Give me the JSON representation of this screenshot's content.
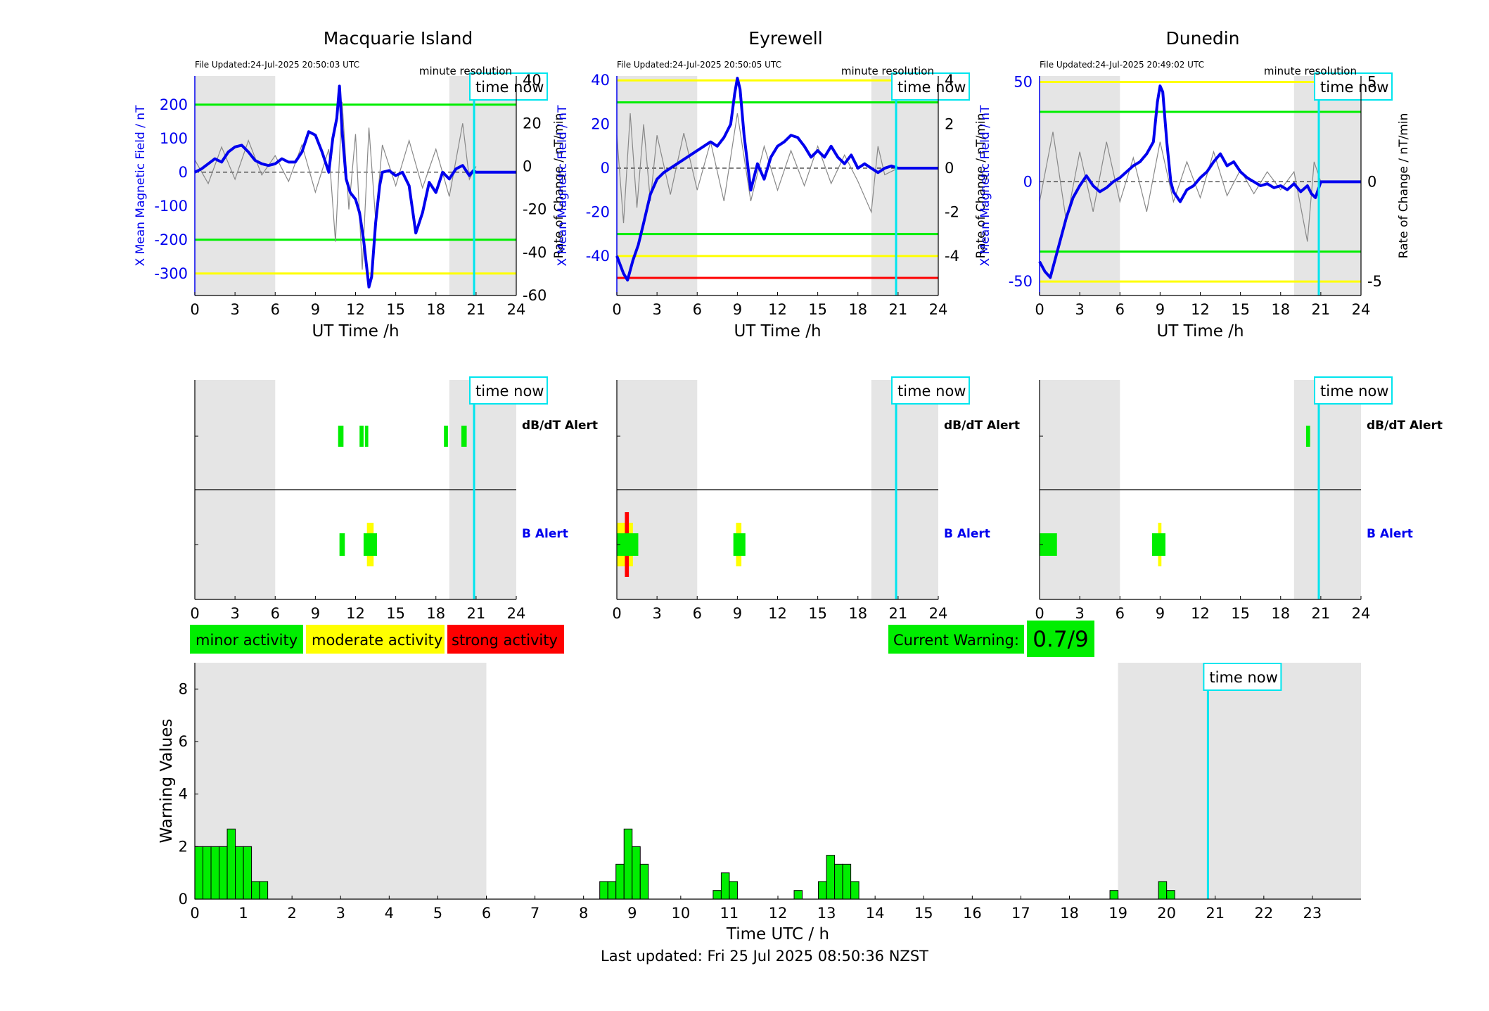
{
  "colors": {
    "shade": "#e5e5e5",
    "green": "#00ee00",
    "yellow": "#ffff00",
    "red": "#ff0000",
    "blue": "#0000ee",
    "cyan": "#00e5ee",
    "grey": "#888888"
  },
  "chart_data": [
    {
      "type": "line",
      "title": "Macquarie Island",
      "file_updated": "File Updated:24-Jul-2025 20:50:03 UTC",
      "resolution_label": "minute resolution",
      "time_now_label": "time now",
      "xlabel": "UT Time /h",
      "ylabel_left": "X Mean Magnetic Field / nT",
      "ylabel_right": "Rate of Change / nT/min",
      "xlim": [
        0,
        24
      ],
      "ylim": [
        -365,
        285
      ],
      "ylim_right": [
        -60,
        42
      ],
      "xticks": [
        0,
        3,
        6,
        9,
        12,
        15,
        18,
        21,
        24
      ],
      "yticks_left": [
        -300,
        -200,
        -100,
        0,
        100,
        200
      ],
      "yticks_right": [
        -60,
        -40,
        -20,
        0,
        20,
        40
      ],
      "shade_ranges": [
        [
          0,
          6
        ],
        [
          19,
          24
        ]
      ],
      "time_now": 20.85,
      "threshold_lines": [
        {
          "value": 200,
          "color": "green"
        },
        {
          "value": -200,
          "color": "green"
        },
        {
          "value": -300,
          "color": "yellow"
        }
      ],
      "series": [
        {
          "kind": "field",
          "x": [
            0,
            0.5,
            1,
            1.5,
            2,
            2.5,
            3,
            3.5,
            4,
            4.5,
            5,
            5.5,
            6,
            6.5,
            7,
            7.5,
            8,
            8.5,
            9,
            9.5,
            10,
            10.3,
            10.6,
            10.8,
            11,
            11.3,
            11.6,
            12,
            12.3,
            12.6,
            13,
            13.2,
            13.5,
            13.8,
            14,
            14.5,
            15,
            15.5,
            16,
            16.5,
            17,
            17.5,
            18,
            18.5,
            19,
            19.5,
            20,
            20.5,
            20.8,
            21,
            22,
            24
          ],
          "values": [
            0,
            10,
            25,
            40,
            30,
            60,
            75,
            80,
            60,
            35,
            25,
            20,
            25,
            40,
            30,
            30,
            60,
            120,
            110,
            60,
            0,
            100,
            160,
            255,
            120,
            -20,
            -60,
            -80,
            -120,
            -200,
            -340,
            -310,
            -150,
            -40,
            0,
            5,
            -10,
            0,
            -40,
            -180,
            -120,
            -30,
            -60,
            0,
            -20,
            10,
            20,
            -10,
            5,
            0,
            0,
            0
          ]
        },
        {
          "kind": "rate",
          "x": [
            0,
            1,
            2,
            3,
            4,
            5,
            6,
            7,
            8,
            9,
            10,
            10.5,
            11,
            11.5,
            12,
            12.5,
            13,
            13.5,
            14,
            15,
            16,
            17,
            18,
            19,
            20,
            20.5,
            21
          ],
          "values": [
            3,
            -8,
            9,
            -6,
            12,
            -4,
            5,
            -7,
            10,
            -12,
            8,
            -35,
            30,
            -20,
            15,
            -48,
            18,
            -25,
            10,
            -9,
            12,
            -10,
            8,
            -14,
            20,
            -6,
            0
          ]
        }
      ]
    },
    {
      "type": "line",
      "title": "Eyrewell",
      "file_updated": "File Updated:24-Jul-2025 20:50:05 UTC",
      "resolution_label": "minute resolution",
      "time_now_label": "time now",
      "xlabel": "UT Time /h",
      "ylabel_left": "X Mean Magnetic Field / nT",
      "ylabel_right": "Rate of Change / nT/min",
      "xlim": [
        0,
        24
      ],
      "ylim": [
        -58,
        42
      ],
      "ylim_right": [
        -5.8,
        4.2
      ],
      "xticks": [
        0,
        3,
        6,
        9,
        12,
        15,
        18,
        21,
        24
      ],
      "yticks_left": [
        -40,
        -20,
        0,
        20,
        40
      ],
      "yticks_right": [
        -4,
        -2,
        0,
        2,
        4
      ],
      "shade_ranges": [
        [
          0,
          6
        ],
        [
          19,
          24
        ]
      ],
      "time_now": 20.85,
      "threshold_lines": [
        {
          "value": 40,
          "color": "yellow"
        },
        {
          "value": 30,
          "color": "green"
        },
        {
          "value": -30,
          "color": "green"
        },
        {
          "value": -40,
          "color": "yellow"
        },
        {
          "value": -50,
          "color": "red"
        }
      ],
      "series": [
        {
          "kind": "field",
          "x": [
            0,
            0.5,
            0.8,
            1.2,
            1.6,
            2,
            2.5,
            3,
            3.5,
            4,
            4.5,
            5,
            5.5,
            6,
            6.5,
            7,
            7.5,
            8,
            8.5,
            8.8,
            9,
            9.2,
            9.5,
            10,
            10.5,
            11,
            11.5,
            12,
            12.5,
            13,
            13.5,
            14,
            14.5,
            15,
            15.5,
            16,
            16.5,
            17,
            17.5,
            18,
            18.5,
            19,
            19.5,
            20,
            20.5,
            21,
            22,
            24
          ],
          "values": [
            -40,
            -48,
            -51,
            -42,
            -35,
            -25,
            -12,
            -5,
            -2,
            0,
            2,
            4,
            6,
            8,
            10,
            12,
            10,
            14,
            20,
            34,
            41,
            36,
            15,
            -10,
            2,
            -5,
            5,
            10,
            12,
            15,
            14,
            10,
            5,
            8,
            5,
            10,
            5,
            2,
            6,
            0,
            2,
            0,
            -2,
            0,
            1,
            0,
            0,
            0
          ]
        },
        {
          "kind": "rate",
          "x": [
            0,
            0.5,
            1,
            1.5,
            2,
            2.5,
            3,
            4,
            5,
            6,
            7,
            8,
            9,
            10,
            11,
            12,
            13,
            14,
            15,
            16,
            17,
            18,
            19,
            19.5,
            20,
            21
          ],
          "values": [
            1.5,
            -2.5,
            2.5,
            -1.8,
            2,
            -1.5,
            1.5,
            -1.2,
            1.6,
            -1,
            1.2,
            -1.5,
            2.5,
            -1.5,
            1,
            -1,
            0.8,
            -0.8,
            1,
            -0.7,
            0.6,
            -0.6,
            -2,
            1,
            -0.3,
            0
          ]
        }
      ]
    },
    {
      "type": "line",
      "title": "Dunedin",
      "file_updated": "File Updated:24-Jul-2025 20:49:02 UTC",
      "resolution_label": "minute resolution",
      "time_now_label": "time now",
      "xlabel": "UT Time /h",
      "ylabel_left": "X Mean Magnetic Field / nT",
      "ylabel_right": "Rate of Change / nT/min",
      "xlim": [
        0,
        24
      ],
      "ylim": [
        -57,
        53
      ],
      "ylim_right": [
        -5.7,
        5.3
      ],
      "xticks": [
        0,
        3,
        6,
        9,
        12,
        15,
        18,
        21,
        24
      ],
      "yticks_left": [
        -50,
        0,
        50
      ],
      "yticks_right": [
        -5,
        0,
        5
      ],
      "shade_ranges": [
        [
          0,
          6
        ],
        [
          19,
          24
        ]
      ],
      "time_now": 20.85,
      "threshold_lines": [
        {
          "value": 50,
          "color": "yellow"
        },
        {
          "value": 35,
          "color": "green"
        },
        {
          "value": -35,
          "color": "green"
        },
        {
          "value": -50,
          "color": "yellow"
        }
      ],
      "series": [
        {
          "kind": "field",
          "x": [
            0,
            0.4,
            0.8,
            1.2,
            1.6,
            2,
            2.5,
            3,
            3.5,
            4,
            4.5,
            5,
            5.5,
            6,
            6.5,
            7,
            7.5,
            8,
            8.5,
            8.8,
            9,
            9.2,
            9.5,
            9.8,
            10,
            10.5,
            11,
            11.5,
            12,
            12.5,
            13,
            13.5,
            14,
            14.5,
            15,
            15.5,
            16,
            16.5,
            17,
            17.5,
            18,
            18.5,
            19,
            19.5,
            20,
            20.3,
            20.6,
            21,
            22,
            24
          ],
          "values": [
            -40,
            -45,
            -48,
            -38,
            -28,
            -18,
            -8,
            -2,
            3,
            -2,
            -5,
            -3,
            0,
            2,
            5,
            8,
            10,
            14,
            20,
            40,
            48,
            45,
            20,
            0,
            -5,
            -10,
            -4,
            -2,
            2,
            5,
            10,
            14,
            8,
            10,
            5,
            2,
            0,
            -2,
            -1,
            -3,
            -2,
            -4,
            -1,
            -5,
            -2,
            -6,
            -8,
            0,
            0,
            0
          ]
        },
        {
          "kind": "rate",
          "x": [
            0,
            1,
            2,
            3,
            4,
            5,
            6,
            7,
            8,
            9,
            10,
            11,
            12,
            13,
            14,
            15,
            16,
            17,
            18,
            19,
            20,
            20.5,
            21
          ],
          "values": [
            -1,
            2.5,
            -2,
            1.5,
            -1.5,
            2,
            -1,
            1.2,
            -1.5,
            2,
            -1,
            1,
            -0.8,
            1.5,
            -0.7,
            0.6,
            -0.6,
            0.5,
            -0.4,
            0.5,
            -3,
            1,
            0
          ]
        }
      ]
    },
    {
      "type": "bar",
      "subtype": "alert-timeline",
      "station": "Macquarie Island",
      "time_now_label": "time now",
      "dbdt_label": "dB/dT Alert",
      "b_label": "B Alert",
      "xlim": [
        0,
        24
      ],
      "xticks": [
        0,
        3,
        6,
        9,
        12,
        15,
        18,
        21,
        24
      ],
      "shade_ranges": [
        [
          0,
          6
        ],
        [
          19,
          24
        ]
      ],
      "time_now": 20.85,
      "dbdt_alerts": [
        {
          "start": 10.7,
          "end": 11.1,
          "level": "green"
        },
        {
          "start": 12.3,
          "end": 12.6,
          "level": "green"
        },
        {
          "start": 12.7,
          "end": 12.95,
          "level": "green"
        },
        {
          "start": 18.6,
          "end": 18.9,
          "level": "green"
        },
        {
          "start": 19.9,
          "end": 20.3,
          "level": "green"
        }
      ],
      "b_alerts": [
        {
          "start": 10.8,
          "end": 11.2,
          "level": "green"
        },
        {
          "start": 12.6,
          "end": 13.6,
          "level": "green",
          "overlay": {
            "start": 12.85,
            "end": 13.35,
            "level": "yellow"
          }
        }
      ]
    },
    {
      "type": "bar",
      "subtype": "alert-timeline",
      "station": "Eyrewell",
      "time_now_label": "time now",
      "dbdt_label": "dB/dT Alert",
      "b_label": "B Alert",
      "xlim": [
        0,
        24
      ],
      "xticks": [
        0,
        3,
        6,
        9,
        12,
        15,
        18,
        21,
        24
      ],
      "shade_ranges": [
        [
          0,
          6
        ],
        [
          19,
          24
        ]
      ],
      "time_now": 20.85,
      "dbdt_alerts": [],
      "b_alerts": [
        {
          "start": 0,
          "end": 1.6,
          "level": "green",
          "overlay": {
            "start": 0,
            "end": 1.2,
            "level": "yellow"
          },
          "overlay2": {
            "start": 0.6,
            "end": 0.9,
            "level": "red"
          }
        },
        {
          "start": 8.7,
          "end": 9.6,
          "level": "green",
          "overlay": {
            "start": 8.9,
            "end": 9.3,
            "level": "yellow"
          }
        }
      ]
    },
    {
      "type": "bar",
      "subtype": "alert-timeline",
      "station": "Dunedin",
      "time_now_label": "time now",
      "dbdt_label": "dB/dT Alert",
      "b_label": "B Alert",
      "xlim": [
        0,
        24
      ],
      "xticks": [
        0,
        3,
        6,
        9,
        12,
        15,
        18,
        21,
        24
      ],
      "shade_ranges": [
        [
          0,
          6
        ],
        [
          19,
          24
        ]
      ],
      "time_now": 20.85,
      "dbdt_alerts": [
        {
          "start": 19.9,
          "end": 20.2,
          "level": "green"
        }
      ],
      "b_alerts": [
        {
          "start": 0,
          "end": 1.3,
          "level": "green"
        },
        {
          "start": 8.4,
          "end": 9.4,
          "level": "green",
          "overlay": {
            "start": 8.85,
            "end": 9.1,
            "level": "yellow"
          }
        }
      ]
    },
    {
      "type": "bar",
      "subtype": "warning-histogram",
      "xlabel": "Time UTC / h",
      "ylabel": "Warning Values",
      "xlim": [
        0,
        24
      ],
      "ylim": [
        0,
        9
      ],
      "xticks": [
        0,
        1,
        2,
        3,
        4,
        5,
        6,
        7,
        8,
        9,
        10,
        11,
        12,
        13,
        14,
        15,
        16,
        17,
        18,
        19,
        20,
        21,
        22,
        23
      ],
      "yticks": [
        0,
        2,
        4,
        6,
        8
      ],
      "shade_ranges": [
        [
          0,
          6
        ],
        [
          19,
          24
        ]
      ],
      "time_now": 20.85,
      "time_now_label": "time now",
      "bin_width": 0.1667,
      "bars": [
        {
          "x": 0.0,
          "value": 2
        },
        {
          "x": 0.1667,
          "value": 2
        },
        {
          "x": 0.3333,
          "value": 2
        },
        {
          "x": 0.5,
          "value": 2
        },
        {
          "x": 0.6667,
          "value": 2.67
        },
        {
          "x": 0.8333,
          "value": 2
        },
        {
          "x": 1.0,
          "value": 2
        },
        {
          "x": 1.1667,
          "value": 0.67
        },
        {
          "x": 1.3333,
          "value": 0.67
        },
        {
          "x": 8.3333,
          "value": 0.67
        },
        {
          "x": 8.5,
          "value": 0.67
        },
        {
          "x": 8.6667,
          "value": 1.33
        },
        {
          "x": 8.8333,
          "value": 2.67
        },
        {
          "x": 9.0,
          "value": 2
        },
        {
          "x": 9.1667,
          "value": 1.33
        },
        {
          "x": 10.6667,
          "value": 0.33
        },
        {
          "x": 10.8333,
          "value": 1
        },
        {
          "x": 11.0,
          "value": 0.67
        },
        {
          "x": 12.3333,
          "value": 0.33
        },
        {
          "x": 12.8333,
          "value": 0.67
        },
        {
          "x": 13.0,
          "value": 1.67
        },
        {
          "x": 13.1667,
          "value": 1.33
        },
        {
          "x": 13.3333,
          "value": 1.33
        },
        {
          "x": 13.5,
          "value": 0.67
        },
        {
          "x": 18.8333,
          "value": 0.33
        },
        {
          "x": 19.8333,
          "value": 0.67
        },
        {
          "x": 20.0,
          "value": 0.33
        }
      ]
    }
  ],
  "legend": {
    "minor": "minor activity",
    "moderate": "moderate activity",
    "strong": "strong activity"
  },
  "current_warning": {
    "label": "Current Warning:",
    "value": "0.7/9"
  },
  "footer": {
    "last_updated": "Last updated: Fri 25 Jul 2025 08:50:36 NZST"
  }
}
